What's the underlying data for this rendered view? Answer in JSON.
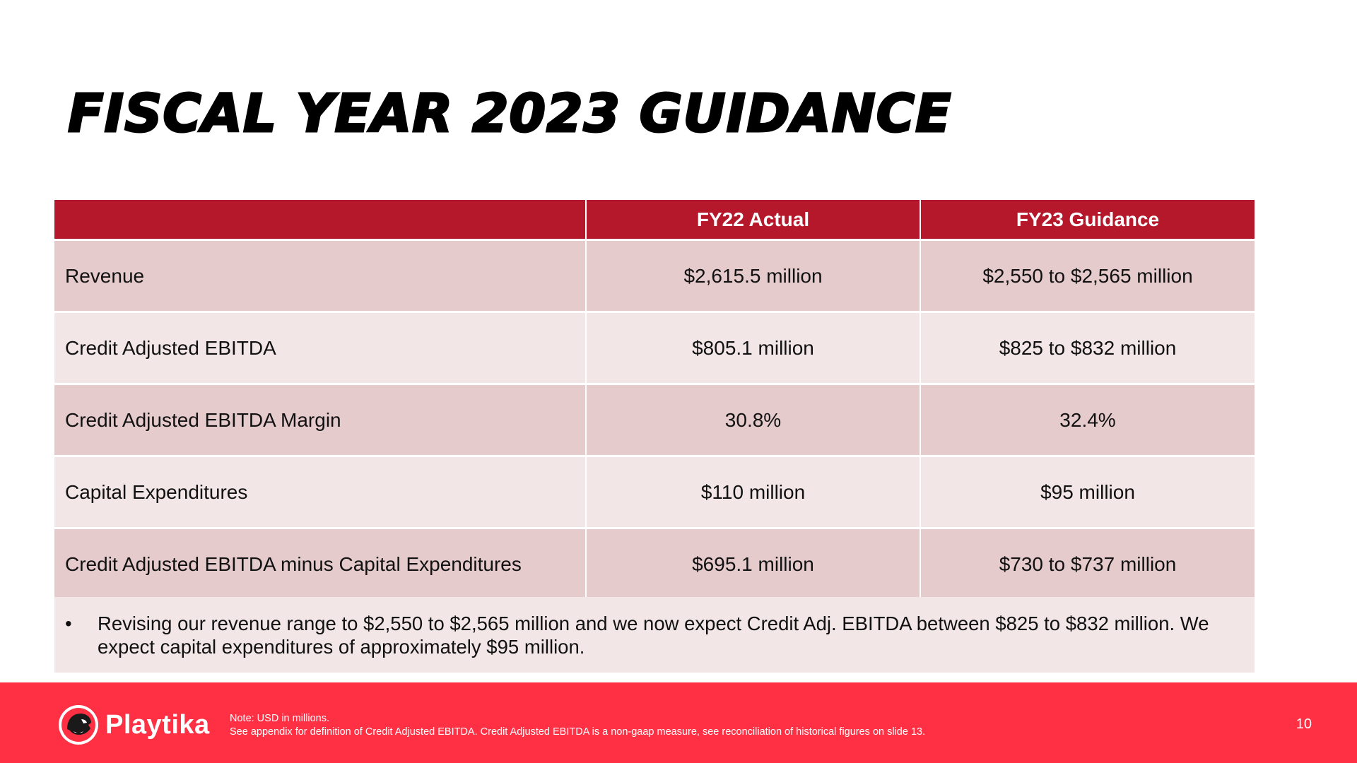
{
  "slide": {
    "title": "FISCAL YEAR 2023 GUIDANCE",
    "page_number": "10"
  },
  "table": {
    "headers": [
      "",
      "FY22 Actual",
      "FY23 Guidance"
    ],
    "rows": [
      {
        "label": "Revenue",
        "fy22": "$2,615.5 million",
        "fy23": "$2,550 to $2,565 million"
      },
      {
        "label": "Credit Adjusted EBITDA",
        "fy22": "$805.1 million",
        "fy23": "$825 to $832 million"
      },
      {
        "label": "Credit Adjusted EBITDA Margin",
        "fy22": "30.8%",
        "fy23": "32.4%"
      },
      {
        "label": "Capital Expenditures",
        "fy22": "$110 million",
        "fy23": "$95 million"
      },
      {
        "label": "Credit Adjusted EBITDA minus Capital Expenditures",
        "fy22": "$695.1 million",
        "fy23": "$730 to $737 million"
      }
    ]
  },
  "note": {
    "bullet": "•",
    "text": "Revising our revenue range to $2,550 to $2,565 million and we now expect Credit Adj. EBITDA between $825 to $832 million. We expect capital expenditures of approximately $95 million."
  },
  "footer": {
    "brand": "Playtika",
    "logo_icon": "panther-head-icon",
    "note_line1": "Note:  USD in millions.",
    "note_line2": "See appendix for definition of Credit Adjusted EBITDA. Credit Adjusted EBITDA is a non-gaap measure, see reconciliation of historical figures on slide 13."
  },
  "colors": {
    "header_red": "#b5182a",
    "footer_red": "#ff3044",
    "row_dark": "#e6cbcd",
    "row_light": "#f2e6e7"
  }
}
